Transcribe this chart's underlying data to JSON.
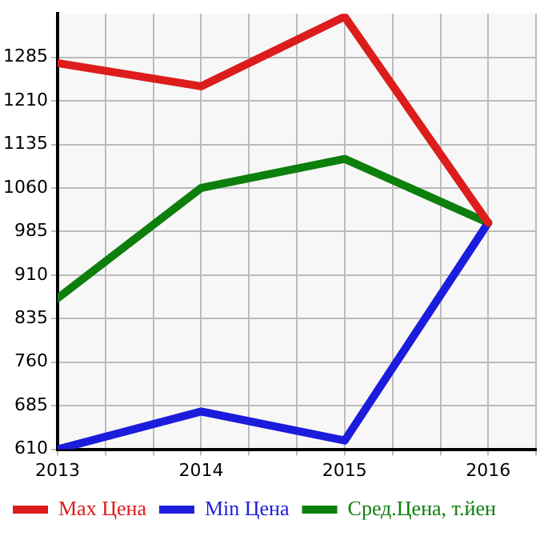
{
  "chart_data": {
    "type": "line",
    "x": [
      2013,
      2014,
      2015,
      2016
    ],
    "series": [
      {
        "name": "Max Цена",
        "color": "#dd1c1c",
        "values": [
          1275,
          1235,
          1355,
          1000
        ]
      },
      {
        "name": "Min Цена",
        "color": "#1c1cdd",
        "values": [
          610,
          675,
          625,
          1000
        ]
      },
      {
        "name": "Сред.Цена, т.йен",
        "color": "#0c7f0c",
        "values": [
          870,
          1060,
          1110,
          1000
        ]
      }
    ],
    "xlim": [
      2013,
      2016.333
    ],
    "xticks": [
      2013,
      {
        "value": 2013.333,
        "label": null
      },
      {
        "value": 2013.667,
        "label": null
      },
      2014,
      {
        "value": 2014.333,
        "label": null
      },
      {
        "value": 2014.667,
        "label": null
      },
      2015,
      {
        "value": 2015.333,
        "label": null
      },
      {
        "value": 2015.667,
        "label": null
      },
      2016,
      {
        "value": 2016.333,
        "label": null
      }
    ],
    "ylim": [
      610,
      1360
    ],
    "yticks": [
      610,
      685,
      760,
      835,
      910,
      985,
      1060,
      1135,
      1210,
      1285
    ],
    "grid": true,
    "legend": "bottom",
    "marker": "none",
    "line_style": "solid"
  }
}
